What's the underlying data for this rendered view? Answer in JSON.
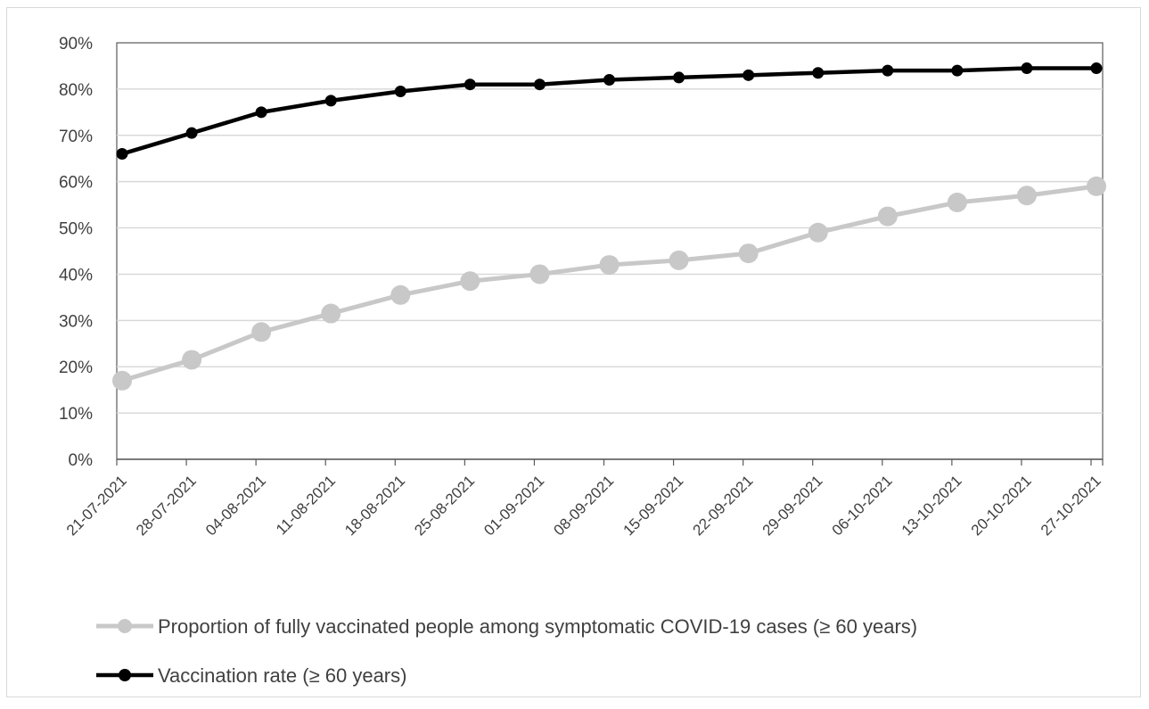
{
  "chart_data": {
    "type": "line",
    "title": "",
    "xlabel": "",
    "ylabel": "",
    "ylim": [
      0,
      90
    ],
    "y_tick_step": 10,
    "y_unit": "%",
    "grid": true,
    "legend_position": "bottom",
    "categories": [
      "21-07-2021",
      "28-07-2021",
      "04-08-2021",
      "11-08-2021",
      "18-08-2021",
      "25-08-2021",
      "01-09-2021",
      "08-09-2021",
      "15-09-2021",
      "22-09-2021",
      "29-09-2021",
      "06-10-2021",
      "13-10-2021",
      "20-10-2021",
      "27-10-2021"
    ],
    "series": [
      {
        "name": "Proportion of fully vaccinated people among symptomatic COVID-19 cases (≥ 60 years)",
        "color": "#c8c8c8",
        "values": [
          17,
          21.5,
          27.5,
          31.5,
          35.5,
          38.5,
          40,
          42,
          43,
          44.5,
          49,
          52.5,
          55.5,
          57,
          59
        ]
      },
      {
        "name": "Vaccination rate (≥ 60 years)",
        "color": "#000000",
        "values": [
          66,
          70.5,
          75,
          77.5,
          79.5,
          81,
          81,
          82,
          82.5,
          83,
          83.5,
          84,
          84,
          84.5,
          84.5
        ]
      }
    ]
  }
}
